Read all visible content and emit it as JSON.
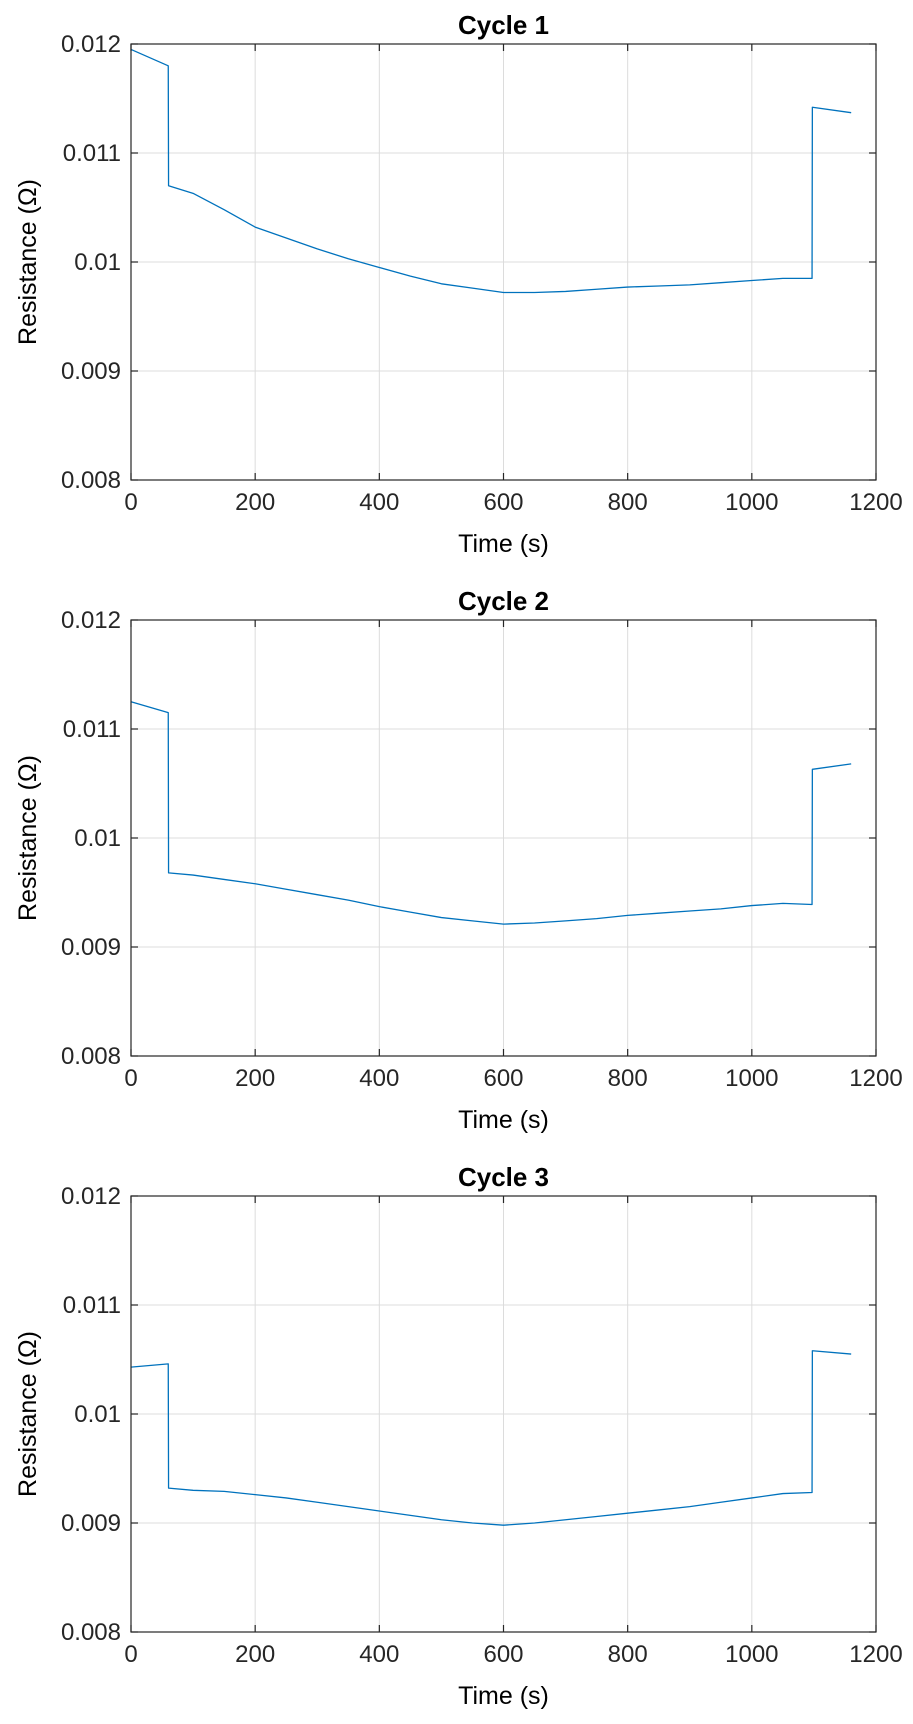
{
  "chart_data": [
    {
      "type": "line",
      "title": "Cycle 1",
      "xlabel": "Time (s)",
      "ylabel": "Resistance (Ω)",
      "xlim": [
        0,
        1200
      ],
      "ylim": [
        0.008,
        0.012
      ],
      "xticks": [
        0,
        200,
        400,
        600,
        800,
        1000,
        1200
      ],
      "xtick_labels": [
        "0",
        "200",
        "400",
        "600",
        "800",
        "1000",
        "1200"
      ],
      "yticks": [
        0.008,
        0.009,
        0.01,
        0.011,
        0.012
      ],
      "ytick_labels": [
        "0.008",
        "0.009",
        "0.01",
        "0.011",
        "0.012"
      ],
      "grid": true,
      "series": [
        {
          "color": "#0072BD",
          "x": [
            0,
            60,
            60.5,
            100,
            150,
            200,
            250,
            300,
            350,
            400,
            450,
            500,
            550,
            600,
            650,
            700,
            750,
            800,
            850,
            900,
            950,
            1000,
            1050,
            1097,
            1097.5,
            1160
          ],
          "y": [
            0.01195,
            0.0118,
            0.0107,
            0.01063,
            0.01048,
            0.01032,
            0.01022,
            0.01012,
            0.01003,
            0.00995,
            0.00987,
            0.0098,
            0.00976,
            0.00972,
            0.00972,
            0.00973,
            0.00975,
            0.00977,
            0.00978,
            0.00979,
            0.00981,
            0.00983,
            0.00985,
            0.00985,
            0.01142,
            0.01137
          ]
        }
      ]
    },
    {
      "type": "line",
      "title": "Cycle 2",
      "xlabel": "Time (s)",
      "ylabel": "Resistance (Ω)",
      "xlim": [
        0,
        1200
      ],
      "ylim": [
        0.008,
        0.012
      ],
      "xticks": [
        0,
        200,
        400,
        600,
        800,
        1000,
        1200
      ],
      "xtick_labels": [
        "0",
        "200",
        "400",
        "600",
        "800",
        "1000",
        "1200"
      ],
      "yticks": [
        0.008,
        0.009,
        0.01,
        0.011,
        0.012
      ],
      "ytick_labels": [
        "0.008",
        "0.009",
        "0.01",
        "0.011",
        "0.012"
      ],
      "grid": true,
      "series": [
        {
          "color": "#0072BD",
          "x": [
            0,
            60,
            60.5,
            100,
            150,
            200,
            250,
            300,
            350,
            400,
            450,
            500,
            550,
            600,
            650,
            700,
            750,
            800,
            850,
            900,
            950,
            1000,
            1050,
            1097,
            1097.5,
            1160
          ],
          "y": [
            0.01125,
            0.01115,
            0.00968,
            0.00966,
            0.00962,
            0.00958,
            0.00953,
            0.00948,
            0.00943,
            0.00937,
            0.00932,
            0.00927,
            0.00924,
            0.00921,
            0.00922,
            0.00924,
            0.00926,
            0.00929,
            0.00931,
            0.00933,
            0.00935,
            0.00938,
            0.0094,
            0.00939,
            0.01063,
            0.01068
          ]
        }
      ]
    },
    {
      "type": "line",
      "title": "Cycle 3",
      "xlabel": "Time (s)",
      "ylabel": "Resistance (Ω)",
      "xlim": [
        0,
        1200
      ],
      "ylim": [
        0.008,
        0.012
      ],
      "xticks": [
        0,
        200,
        400,
        600,
        800,
        1000,
        1200
      ],
      "xtick_labels": [
        "0",
        "200",
        "400",
        "600",
        "800",
        "1000",
        "1200"
      ],
      "yticks": [
        0.008,
        0.009,
        0.01,
        0.011,
        0.012
      ],
      "ytick_labels": [
        "0.008",
        "0.009",
        "0.01",
        "0.011",
        "0.012"
      ],
      "grid": true,
      "series": [
        {
          "color": "#0072BD",
          "x": [
            0,
            60,
            60.5,
            100,
            150,
            200,
            250,
            300,
            350,
            400,
            450,
            500,
            550,
            600,
            650,
            700,
            750,
            800,
            850,
            900,
            950,
            1000,
            1050,
            1097,
            1097.5,
            1160
          ],
          "y": [
            0.01043,
            0.01046,
            0.00932,
            0.0093,
            0.00929,
            0.00926,
            0.00923,
            0.00919,
            0.00915,
            0.00911,
            0.00907,
            0.00903,
            0.009,
            0.00898,
            0.009,
            0.00903,
            0.00906,
            0.00909,
            0.00912,
            0.00915,
            0.00919,
            0.00923,
            0.00927,
            0.00928,
            0.01058,
            0.01055
          ]
        }
      ]
    }
  ]
}
